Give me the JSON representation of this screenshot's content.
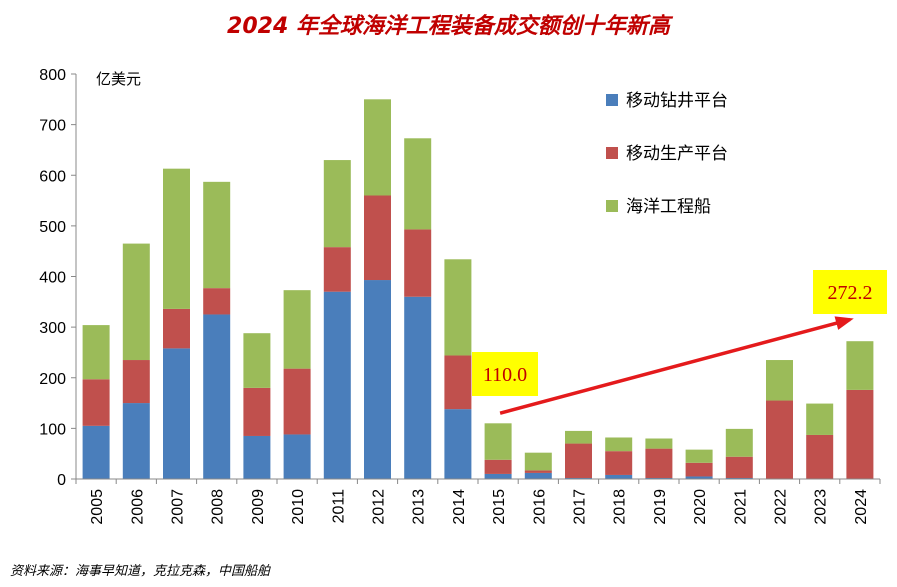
{
  "title": "2024 年全球海洋工程装备成交额创十年新高",
  "source": "资料来源：海事早知道，克拉克森，中国船舶",
  "chart_data": {
    "type": "bar",
    "stacked": true,
    "unit": "亿美元",
    "categories": [
      "2005",
      "2006",
      "2007",
      "2008",
      "2009",
      "2010",
      "2011",
      "2012",
      "2013",
      "2014",
      "2015",
      "2016",
      "2017",
      "2018",
      "2019",
      "2020",
      "2021",
      "2022",
      "2023",
      "2024"
    ],
    "series": [
      {
        "name": "移动钻井平台",
        "color": "#4a7ebb",
        "values": [
          105,
          150,
          258,
          325,
          85,
          88,
          370,
          393,
          360,
          138,
          10,
          12,
          2,
          8,
          2,
          5,
          2,
          0,
          0,
          0
        ]
      },
      {
        "name": "移动生产平台",
        "color": "#c0504d",
        "values": [
          92,
          85,
          78,
          52,
          95,
          130,
          88,
          167,
          133,
          106,
          28,
          5,
          68,
          47,
          58,
          27,
          42,
          155,
          87,
          176
        ]
      },
      {
        "name": "海洋工程船",
        "color": "#9bbb59",
        "values": [
          107,
          230,
          277,
          210,
          108,
          155,
          172,
          190,
          180,
          190,
          72,
          35,
          25,
          27,
          20,
          26,
          55,
          80,
          62,
          96.2
        ]
      }
    ],
    "yticks": [
      0,
      100,
      200,
      300,
      400,
      500,
      600,
      700,
      800
    ],
    "ylim": [
      0,
      800
    ],
    "legend_position": "top-right",
    "annotations": [
      {
        "label": "110.0",
        "category": "2015",
        "value": 110.0
      },
      {
        "label": "272.2",
        "category": "2024",
        "value": 272.2
      }
    ],
    "trend_arrow": {
      "from_category": "2015",
      "to_category": "2024",
      "color": "#e41a1c"
    }
  }
}
